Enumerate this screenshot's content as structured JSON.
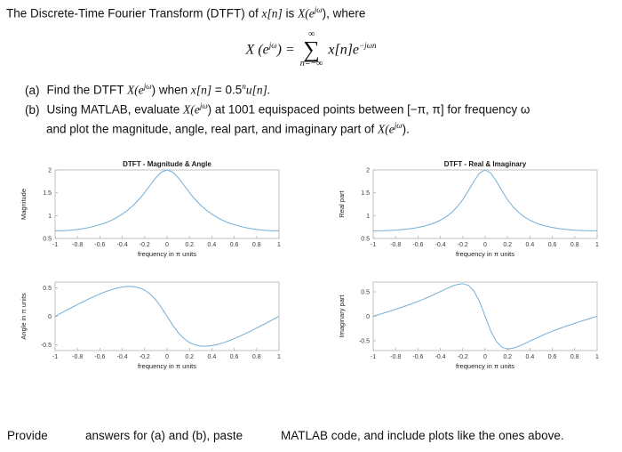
{
  "colors": {
    "line": "#74aed4",
    "axis": "#b3b3b3",
    "text": "#111111"
  },
  "intro": {
    "seg1": "The Discrete-Time Fourier Transform (DTFT) of ",
    "xn": "x[n]",
    "seg2": " is ",
    "Xe": "X(e",
    "sup": "jω",
    "seg3": "), where"
  },
  "formula": {
    "X": "X (e",
    "sup": "jω",
    "eq": ") =",
    "sum_upper": "∞",
    "sigma": "∑",
    "sum_lower": "n=−∞",
    "x_term": "x[n]e",
    "exp": "−jωn"
  },
  "item_a": {
    "label": "(a)",
    "t1": "Find the DTFT ",
    "Xe": "X(e",
    "sup": "jω",
    "t2": ") when ",
    "xn": "x[n]",
    "t3": " = 0.5",
    "nsup": "n",
    "t4": "u[n]."
  },
  "item_b": {
    "label": "(b)",
    "t1": "Using MATLAB, evaluate ",
    "Xe": "X(e",
    "sup": "jω",
    "t2": ") at 1001 equispaced points between [−π, π] for frequency ω",
    "t3": "and plot the magnitude, angle, real part, and imaginary part of ",
    "Xe2": "X(e",
    "sup2": "jω",
    "t4": ")."
  },
  "footer": {
    "t1": "Provide",
    "t2": "answers for (a) and (b), paste",
    "t3": "MATLAB code, and include plots like the ones above."
  },
  "chart_data": [
    {
      "type": "line",
      "title": "DTFT - Magnitude & Angle",
      "ylabel": "Magnitude",
      "xlabel": "frequency in π units",
      "xlim": [
        -1,
        1
      ],
      "ylim": [
        0.5,
        2
      ],
      "xticks": [
        -1,
        -0.8,
        -0.6,
        -0.4,
        -0.2,
        0,
        0.2,
        0.4,
        0.6,
        0.8,
        1
      ],
      "yticks": [
        0.5,
        1,
        1.5,
        2
      ],
      "x": [
        -1,
        -0.95,
        -0.9,
        -0.85,
        -0.8,
        -0.75,
        -0.7,
        -0.65,
        -0.6,
        -0.55,
        -0.5,
        -0.45,
        -0.4,
        -0.35,
        -0.3,
        -0.25,
        -0.2,
        -0.15,
        -0.1,
        -0.05,
        0,
        0.05,
        0.1,
        0.15,
        0.2,
        0.25,
        0.3,
        0.35,
        0.4,
        0.45,
        0.5,
        0.55,
        0.6,
        0.65,
        0.7,
        0.75,
        0.8,
        0.85,
        0.9,
        0.95,
        1
      ],
      "y": [
        0.667,
        0.668,
        0.674,
        0.683,
        0.697,
        0.715,
        0.738,
        0.766,
        0.801,
        0.843,
        0.894,
        0.956,
        1.031,
        1.121,
        1.229,
        1.357,
        1.506,
        1.669,
        1.829,
        1.953,
        2.0,
        1.953,
        1.829,
        1.669,
        1.506,
        1.357,
        1.229,
        1.121,
        1.031,
        0.956,
        0.894,
        0.843,
        0.801,
        0.766,
        0.738,
        0.715,
        0.697,
        0.683,
        0.674,
        0.668,
        0.667
      ]
    },
    {
      "type": "line",
      "title": "",
      "ylabel": "Angle in π units",
      "xlabel": "frequency in π units",
      "xlim": [
        -1,
        1
      ],
      "ylim": [
        -0.6,
        0.6
      ],
      "xticks": [
        -1,
        -0.8,
        -0.6,
        -0.4,
        -0.2,
        0,
        0.2,
        0.4,
        0.6,
        0.8,
        1
      ],
      "yticks": [
        -0.5,
        0,
        0.5
      ],
      "x": [
        -1,
        -0.95,
        -0.9,
        -0.85,
        -0.8,
        -0.75,
        -0.7,
        -0.65,
        -0.6,
        -0.55,
        -0.5,
        -0.45,
        -0.4,
        -0.35,
        -0.3,
        -0.25,
        -0.2,
        -0.15,
        -0.1,
        -0.05,
        0,
        0.05,
        0.1,
        0.15,
        0.2,
        0.25,
        0.3,
        0.35,
        0.4,
        0.45,
        0.5,
        0.55,
        0.6,
        0.65,
        0.7,
        0.75,
        0.8,
        0.85,
        0.9,
        0.95,
        1
      ],
      "y": [
        0,
        0.052,
        0.104,
        0.156,
        0.206,
        0.256,
        0.303,
        0.348,
        0.391,
        0.43,
        0.464,
        0.492,
        0.512,
        0.523,
        0.52,
        0.5,
        0.459,
        0.388,
        0.286,
        0.153,
        0,
        -0.153,
        -0.286,
        -0.388,
        -0.459,
        -0.5,
        -0.52,
        -0.523,
        -0.512,
        -0.492,
        -0.464,
        -0.43,
        -0.391,
        -0.348,
        -0.303,
        -0.256,
        -0.206,
        -0.156,
        -0.104,
        -0.052,
        0
      ]
    },
    {
      "type": "line",
      "title": "DTFT - Real & Imaginary",
      "ylabel": "Real part",
      "xlabel": "frequency in π units",
      "xlim": [
        -1,
        1
      ],
      "ylim": [
        0.5,
        2
      ],
      "xticks": [
        -1,
        -0.8,
        -0.6,
        -0.4,
        -0.2,
        0,
        0.2,
        0.4,
        0.6,
        0.8,
        1
      ],
      "yticks": [
        0.5,
        1,
        1.5,
        2
      ],
      "x": [
        -1,
        -0.95,
        -0.9,
        -0.85,
        -0.8,
        -0.75,
        -0.7,
        -0.65,
        -0.6,
        -0.55,
        -0.5,
        -0.45,
        -0.4,
        -0.35,
        -0.3,
        -0.25,
        -0.2,
        -0.15,
        -0.1,
        -0.05,
        0,
        0.05,
        0.1,
        0.15,
        0.2,
        0.25,
        0.3,
        0.35,
        0.4,
        0.45,
        0.5,
        0.55,
        0.6,
        0.65,
        0.7,
        0.75,
        0.8,
        0.85,
        0.9,
        0.95,
        1
      ],
      "y": [
        0.667,
        0.668,
        0.67,
        0.675,
        0.682,
        0.692,
        0.704,
        0.72,
        0.741,
        0.767,
        0.8,
        0.843,
        0.899,
        0.971,
        1.066,
        1.191,
        1.35,
        1.545,
        1.754,
        1.93,
        2.0,
        1.93,
        1.754,
        1.545,
        1.35,
        1.191,
        1.066,
        0.971,
        0.899,
        0.843,
        0.8,
        0.767,
        0.741,
        0.72,
        0.704,
        0.692,
        0.682,
        0.675,
        0.67,
        0.668,
        0.667
      ]
    },
    {
      "type": "line",
      "title": "",
      "ylabel": "Imaginary part",
      "xlabel": "frequency in π units",
      "xlim": [
        -1,
        1
      ],
      "ylim": [
        -0.7,
        0.7
      ],
      "xticks": [
        -1,
        -0.8,
        -0.6,
        -0.4,
        -0.2,
        0,
        0.2,
        0.4,
        0.6,
        0.8,
        1
      ],
      "yticks": [
        -0.5,
        0,
        0.5
      ],
      "x": [
        -1,
        -0.95,
        -0.9,
        -0.85,
        -0.8,
        -0.75,
        -0.7,
        -0.65,
        -0.6,
        -0.55,
        -0.5,
        -0.45,
        -0.4,
        -0.35,
        -0.3,
        -0.25,
        -0.2,
        -0.15,
        -0.1,
        -0.05,
        0,
        0.05,
        0.1,
        0.15,
        0.2,
        0.25,
        0.3,
        0.35,
        0.4,
        0.45,
        0.5,
        0.55,
        0.6,
        0.65,
        0.7,
        0.75,
        0.8,
        0.85,
        0.9,
        0.95,
        1
      ],
      "y": [
        0,
        0.035,
        0.07,
        0.106,
        0.143,
        0.181,
        0.22,
        0.261,
        0.305,
        0.351,
        0.4,
        0.452,
        0.505,
        0.56,
        0.611,
        0.651,
        0.667,
        0.632,
        0.517,
        0.298,
        0,
        -0.298,
        -0.517,
        -0.632,
        -0.667,
        -0.651,
        -0.611,
        -0.56,
        -0.505,
        -0.452,
        -0.4,
        -0.351,
        -0.305,
        -0.261,
        -0.22,
        -0.181,
        -0.143,
        -0.106,
        -0.07,
        -0.035,
        0
      ]
    }
  ]
}
